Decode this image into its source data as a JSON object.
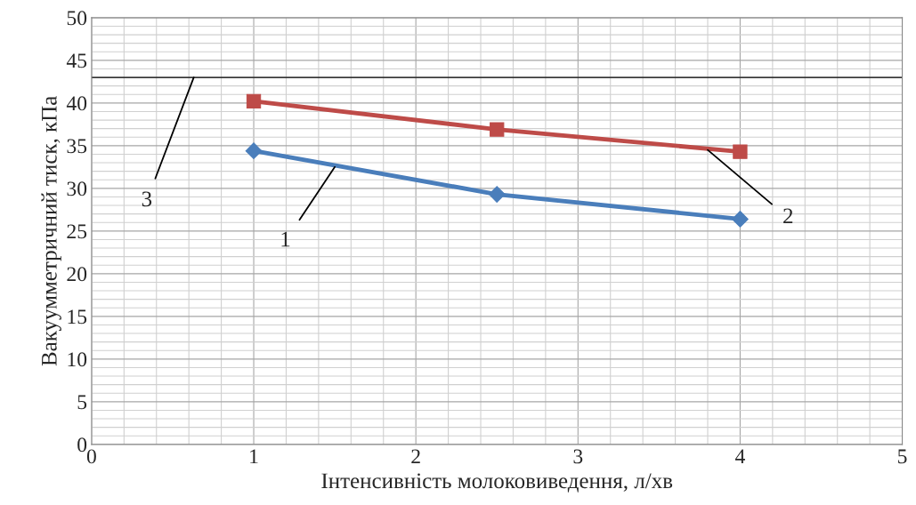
{
  "chart_data": {
    "type": "line",
    "xlabel": "Інтенсивність молоковиведення, л/хв",
    "ylabel": "Вакуумметричний тиск, кПа",
    "series": [
      {
        "color": "#4a7ebb",
        "marker": "diamond",
        "x": [
          1,
          2.5,
          4
        ],
        "values": [
          34.4,
          29.3,
          26.4
        ]
      },
      {
        "color": "#be4b48",
        "marker": "square",
        "x": [
          1,
          2.5,
          4
        ],
        "values": [
          40.2,
          36.9,
          34.3
        ]
      }
    ],
    "xlim": [
      0,
      5
    ],
    "xticks": [
      0,
      1,
      2,
      3,
      4,
      5
    ],
    "ylim": [
      0,
      50
    ],
    "yticks": [
      0,
      5,
      10,
      15,
      20,
      25,
      30,
      35,
      40,
      45,
      50
    ],
    "grid": true,
    "legend": false,
    "ref_lines": [
      {
        "axis": "y",
        "value": 43,
        "color": "#000000"
      }
    ],
    "annotations": [
      {
        "text": "3",
        "x": 0.63,
        "y": 43
      },
      {
        "text": "1",
        "x": 1.5,
        "y": 32.5
      },
      {
        "text": "2",
        "x": 3.8,
        "y": 34.5
      }
    ]
  }
}
